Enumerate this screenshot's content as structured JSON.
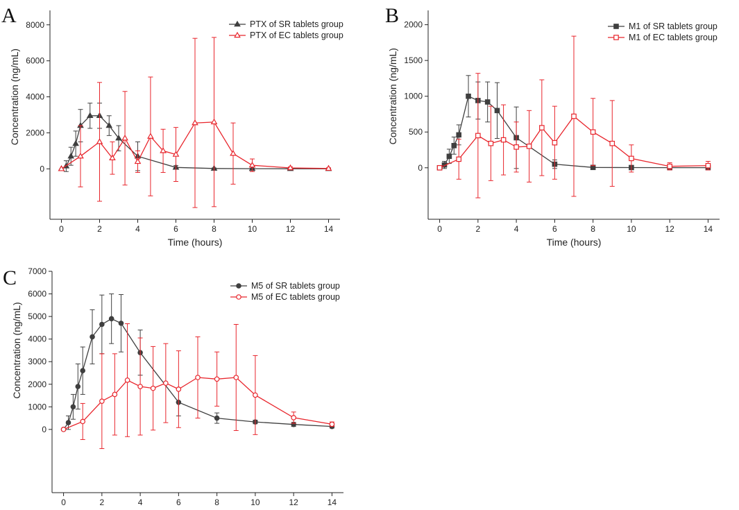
{
  "chart_data": [
    {
      "type": "line",
      "panel_label": "A",
      "xlabel": "Time (hours)",
      "ylabel": "Concentration (ng/mL)",
      "xlim": [
        -0.6,
        14.6
      ],
      "ylim": [
        -2800,
        8800
      ],
      "xticks": [
        0,
        2,
        4,
        6,
        8,
        10,
        12,
        14
      ],
      "yticks": [
        0,
        2000,
        4000,
        6000,
        8000
      ],
      "legend_position": "top-right",
      "series": [
        {
          "name": "PTX of SR tablets group",
          "color": "#3f3f3f",
          "marker": "triangle-filled",
          "x": [
            0,
            0.25,
            0.5,
            0.75,
            1,
            1.5,
            2,
            2.5,
            3,
            4,
            6,
            8,
            10,
            12,
            14
          ],
          "y": [
            0,
            150,
            700,
            1400,
            2400,
            2950,
            2950,
            2400,
            1700,
            700,
            80,
            20,
            10,
            5,
            5
          ],
          "err": [
            0,
            300,
            500,
            700,
            900,
            700,
            700,
            550,
            700,
            800,
            100,
            30,
            20,
            10,
            10
          ]
        },
        {
          "name": "PTX of EC tablets group",
          "color": "#e8242b",
          "marker": "triangle-open",
          "x": [
            0,
            1,
            2,
            2.67,
            3.33,
            4,
            4.67,
            5.33,
            6,
            7,
            8,
            9,
            10,
            12,
            14
          ],
          "y": [
            0,
            700,
            1500,
            600,
            1700,
            400,
            1800,
            1000,
            800,
            2550,
            2600,
            850,
            200,
            50,
            20
          ],
          "err": [
            0,
            1700,
            3300,
            900,
            2600,
            600,
            3300,
            1200,
            1500,
            4700,
            4700,
            1700,
            350,
            60,
            40
          ]
        }
      ]
    },
    {
      "type": "line",
      "panel_label": "B",
      "xlabel": "Time (hours)",
      "ylabel": "Concentration (ng/mL)",
      "xlim": [
        -0.6,
        14.6
      ],
      "ylim": [
        -720,
        2200
      ],
      "xticks": [
        0,
        2,
        4,
        6,
        8,
        10,
        12,
        14
      ],
      "yticks": [
        0,
        500,
        1000,
        1500,
        2000
      ],
      "legend_position": "top-right",
      "series": [
        {
          "name": "M1 of SR tablets group",
          "color": "#3f3f3f",
          "marker": "square-filled",
          "x": [
            0,
            0.25,
            0.5,
            0.75,
            1,
            1.5,
            2,
            2.5,
            3,
            4,
            6,
            8,
            10,
            12,
            14
          ],
          "y": [
            0,
            40,
            160,
            310,
            460,
            1000,
            940,
            920,
            800,
            420,
            50,
            5,
            3,
            2,
            2
          ],
          "err": [
            0,
            50,
            100,
            120,
            140,
            290,
            260,
            280,
            390,
            430,
            60,
            10,
            5,
            5,
            5
          ]
        },
        {
          "name": "M1 of EC tablets group",
          "color": "#e8242b",
          "marker": "square-open",
          "x": [
            0,
            1,
            2,
            2.67,
            3.33,
            4,
            4.67,
            5.33,
            6,
            7,
            8,
            9,
            10,
            12,
            14
          ],
          "y": [
            0,
            120,
            450,
            340,
            390,
            290,
            300,
            560,
            350,
            720,
            500,
            340,
            130,
            20,
            30
          ],
          "err": [
            0,
            280,
            870,
            520,
            490,
            350,
            500,
            670,
            510,
            1120,
            470,
            600,
            190,
            50,
            60
          ]
        }
      ]
    },
    {
      "type": "line",
      "panel_label": "C",
      "xlabel": "Time (hours)",
      "ylabel": "Concentration (ng/mL)",
      "xlim": [
        -0.6,
        14.6
      ],
      "ylim": [
        -2800,
        7000
      ],
      "xticks": [
        0,
        2,
        4,
        6,
        8,
        10,
        12,
        14
      ],
      "yticks": [
        0,
        1000,
        2000,
        3000,
        4000,
        5000,
        6000,
        7000
      ],
      "legend_position": "top-right",
      "series": [
        {
          "name": "M5 of SR tablets group",
          "color": "#3f3f3f",
          "marker": "circle-filled",
          "x": [
            0,
            0.25,
            0.5,
            0.75,
            1,
            1.5,
            2,
            2.5,
            3,
            4,
            6,
            8,
            10,
            12,
            14
          ],
          "y": [
            0,
            300,
            1000,
            1900,
            2600,
            4100,
            4650,
            4900,
            4700,
            3400,
            1200,
            500,
            330,
            220,
            130
          ],
          "err": [
            0,
            300,
            550,
            1000,
            1050,
            1200,
            1300,
            1100,
            1270,
            1000,
            600,
            230,
            80,
            90,
            70
          ]
        },
        {
          "name": "M5 of EC tablets group",
          "color": "#e8242b",
          "marker": "circle-open",
          "x": [
            0,
            1,
            2,
            2.67,
            3.33,
            4,
            4.67,
            5.33,
            6,
            7,
            8,
            9,
            10,
            12,
            14
          ],
          "y": [
            0,
            350,
            1250,
            1550,
            2180,
            1900,
            1820,
            2050,
            1780,
            2300,
            2230,
            2300,
            1520,
            520,
            230
          ],
          "err": [
            0,
            800,
            2100,
            1800,
            2500,
            2150,
            1850,
            1750,
            1700,
            1800,
            1200,
            2350,
            1750,
            250,
            100
          ]
        }
      ]
    }
  ]
}
